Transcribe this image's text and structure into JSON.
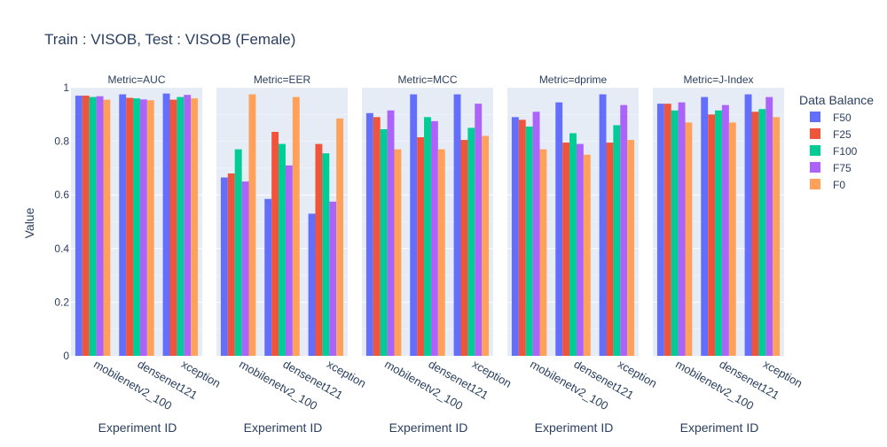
{
  "chart_data": {
    "type": "bar",
    "title": "Train : VISOB, Test : VISOB (Female)",
    "ylabel": "Value",
    "xlabel": "Experiment ID",
    "ylim": [
      0,
      1
    ],
    "yticks": [
      0,
      0.2,
      0.4,
      0.6,
      0.8,
      1
    ],
    "ytick_labels": [
      "0",
      "0.2",
      "0.4",
      "0.6",
      "0.8",
      "1"
    ],
    "grid": true,
    "legend": {
      "title": "Data Balance",
      "placement": "right"
    },
    "categories": [
      "mobilenetv2_100",
      "densenet121",
      "xception"
    ],
    "series_colors": {
      "F50": "#636efa",
      "F25": "#ef553b",
      "F100": "#00cc96",
      "F75": "#ab63fa",
      "F0": "#ffa15a"
    },
    "series_names": [
      "F50",
      "F25",
      "F100",
      "F75",
      "F0"
    ],
    "facets": [
      {
        "title": "Metric=AUC",
        "series": [
          {
            "name": "F50",
            "values": [
              0.97,
              0.975,
              0.978
            ]
          },
          {
            "name": "F25",
            "values": [
              0.97,
              0.962,
              0.955
            ]
          },
          {
            "name": "F100",
            "values": [
              0.965,
              0.96,
              0.965
            ]
          },
          {
            "name": "F75",
            "values": [
              0.968,
              0.956,
              0.973
            ]
          },
          {
            "name": "F0",
            "values": [
              0.955,
              0.953,
              0.96
            ]
          }
        ]
      },
      {
        "title": "Metric=EER",
        "series": [
          {
            "name": "F50",
            "values": [
              0.665,
              0.585,
              0.53
            ]
          },
          {
            "name": "F25",
            "values": [
              0.68,
              0.835,
              0.79
            ]
          },
          {
            "name": "F100",
            "values": [
              0.77,
              0.79,
              0.755
            ]
          },
          {
            "name": "F75",
            "values": [
              0.65,
              0.71,
              0.575
            ]
          },
          {
            "name": "F0",
            "values": [
              0.975,
              0.965,
              0.885
            ]
          }
        ]
      },
      {
        "title": "Metric=MCC",
        "series": [
          {
            "name": "F50",
            "values": [
              0.905,
              0.975,
              0.975
            ]
          },
          {
            "name": "F25",
            "values": [
              0.89,
              0.815,
              0.805
            ]
          },
          {
            "name": "F100",
            "values": [
              0.845,
              0.89,
              0.85
            ]
          },
          {
            "name": "F75",
            "values": [
              0.915,
              0.875,
              0.94
            ]
          },
          {
            "name": "F0",
            "values": [
              0.77,
              0.77,
              0.82
            ]
          }
        ]
      },
      {
        "title": "Metric=dprime",
        "series": [
          {
            "name": "F50",
            "values": [
              0.89,
              0.945,
              0.975
            ]
          },
          {
            "name": "F25",
            "values": [
              0.88,
              0.795,
              0.795
            ]
          },
          {
            "name": "F100",
            "values": [
              0.855,
              0.83,
              0.86
            ]
          },
          {
            "name": "F75",
            "values": [
              0.91,
              0.79,
              0.935
            ]
          },
          {
            "name": "F0",
            "values": [
              0.77,
              0.75,
              0.805
            ]
          }
        ]
      },
      {
        "title": "Metric=J-Index",
        "series": [
          {
            "name": "F50",
            "values": [
              0.94,
              0.965,
              0.975
            ]
          },
          {
            "name": "F25",
            "values": [
              0.94,
              0.9,
              0.91
            ]
          },
          {
            "name": "F100",
            "values": [
              0.915,
              0.915,
              0.92
            ]
          },
          {
            "name": "F75",
            "values": [
              0.945,
              0.935,
              0.965
            ]
          },
          {
            "name": "F0",
            "values": [
              0.87,
              0.87,
              0.89
            ]
          }
        ]
      }
    ]
  }
}
